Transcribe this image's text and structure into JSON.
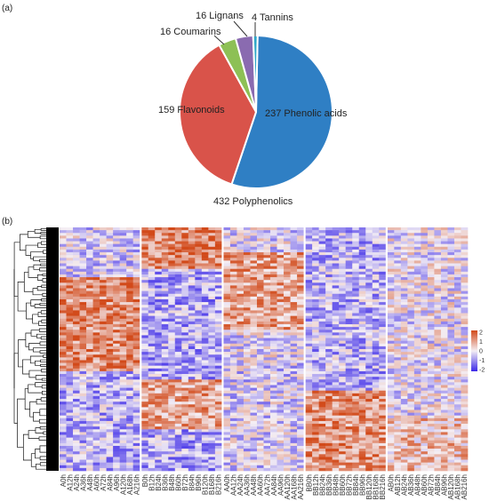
{
  "panel_labels": {
    "a": "(a)",
    "b": "(b)"
  },
  "chart_data": [
    {
      "type": "pie",
      "title": "",
      "total_label": "432 Polyphenolics",
      "slices": [
        {
          "label": "237 Phenolic acids",
          "value": 237,
          "color": "#2f7fc4"
        },
        {
          "label": "159 Flavonoids",
          "value": 159,
          "color": "#d9534a"
        },
        {
          "label": "16 Coumarins",
          "value": 16,
          "color": "#8dc055"
        },
        {
          "label": "16 Lignans",
          "value": 16,
          "color": "#8a6bb0"
        },
        {
          "label": "4 Tannins",
          "value": 4,
          "color": "#2fa8c8"
        }
      ]
    },
    {
      "type": "heatmap",
      "legend_ticks": [
        2,
        1,
        0,
        -1,
        -2
      ],
      "color_range": {
        "low": "#3b28e8",
        "mid": "#f4eef4",
        "high": "#d24a1a"
      },
      "groups": [
        {
          "columns": [
            "A0h",
            "A12h",
            "A24h",
            "A36h",
            "A48h",
            "A60h",
            "A72h",
            "A84h",
            "A96h",
            "A120h",
            "A168h",
            "A216h"
          ]
        },
        {
          "columns": [
            "B0h",
            "B12h",
            "B24h",
            "B36h",
            "B48h",
            "B60h",
            "B72h",
            "B84h",
            "B96h",
            "B120h",
            "B168h",
            "B216h"
          ]
        },
        {
          "columns": [
            "AA0h",
            "AA12h",
            "AA24h",
            "AA36h",
            "AA48h",
            "AA60h",
            "AA72h",
            "AA84h",
            "AA96h",
            "AA120h",
            "AA168h",
            "AA216h"
          ]
        },
        {
          "columns": [
            "BB0h",
            "BB12h",
            "BB24h",
            "BB36h",
            "BB48h",
            "BB60h",
            "BB72h",
            "BB84h",
            "BB96h",
            "BB120h",
            "BB168h",
            "BB216h"
          ]
        },
        {
          "columns": [
            "AB0h",
            "AB12h",
            "AB24h",
            "AB36h",
            "AB48h",
            "AB60h",
            "AB72h",
            "AB84h",
            "AB96h",
            "AB120h",
            "AB168h",
            "AB216h"
          ]
        }
      ]
    }
  ]
}
